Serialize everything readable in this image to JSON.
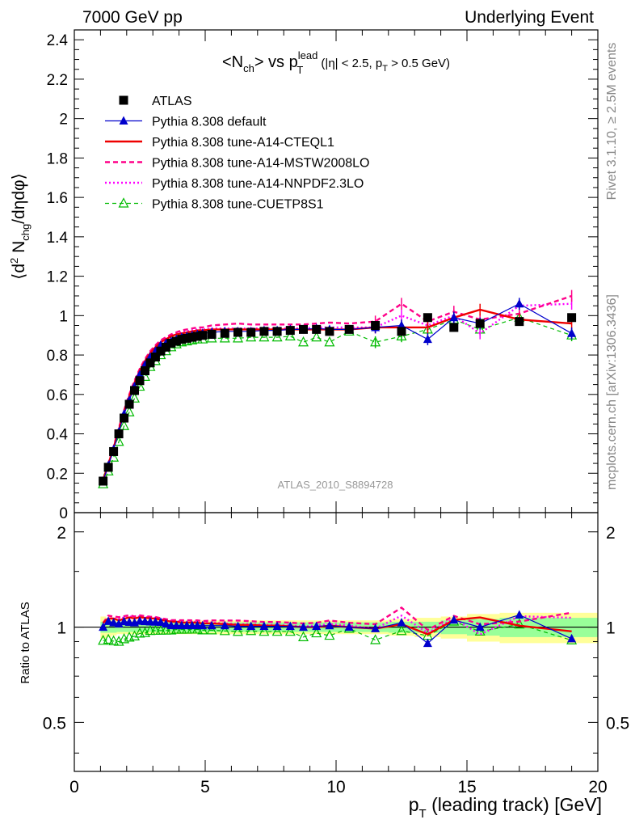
{
  "header": {
    "left": "7000 GeV pp",
    "right": "Underlying Event"
  },
  "side_labels": {
    "rivet": "Rivet 3.1.10, ≥ 2.5M events",
    "mcplots": "mcplots.cern.ch [arXiv:1306.3436]"
  },
  "analysis_label": "ATLAS_2010_S8894728",
  "title": {
    "main": "<N",
    "sub_ch": "ch",
    "vs": "> vs p",
    "sup_lead": "lead",
    "sub_T": "T",
    "cuts_a": " (|η| < 2.5, p",
    "cuts_sub": "T",
    "cuts_b": " > 0.5 GeV)"
  },
  "y_label_main": {
    "a": "⟨d",
    "sup": "2",
    "b": " N",
    "sub": "chg",
    "c": "/dηdφ⟩"
  },
  "y_label_ratio": "Ratio to ATLAS",
  "x_label": {
    "a": "p",
    "sub": "T",
    "b": " (leading track) [GeV]"
  },
  "colors": {
    "data": "#000000",
    "default": "#0000cc",
    "cteql1": "#ee0000",
    "mstw": "#ff0088",
    "nnpdf": "#ff00ff",
    "cuetp8s1": "#00bb00",
    "band_inner": "#99ff99",
    "band_outer": "#ffff99"
  },
  "chart_data": [
    {
      "type": "scatter",
      "title": "<Nch> vs pT lead (|η| < 2.5, pT > 0.5 GeV)",
      "xlabel": "pT (leading track) [GeV]",
      "ylabel": "⟨d2 Nchg/dηdφ⟩",
      "xlim": [
        0,
        20
      ],
      "ylim": [
        0,
        2.45
      ],
      "yticks": [
        0,
        0.2,
        0.4,
        0.6,
        0.8,
        1,
        1.2,
        1.4,
        1.6,
        1.8,
        2,
        2.2,
        2.4
      ],
      "yticklabels": [
        "0",
        "0.2",
        "0.4",
        "0.6",
        "0.8",
        "1",
        "1.2",
        "1.4",
        "1.6",
        "1.8",
        "2",
        "2.2",
        "2.4"
      ],
      "xticks": [
        0,
        5,
        10,
        15,
        20
      ],
      "xticklabels": [
        "0",
        "5",
        "10",
        "15",
        "20"
      ],
      "legend_position": "top-left",
      "x": [
        1.1,
        1.3,
        1.5,
        1.7,
        1.9,
        2.1,
        2.3,
        2.5,
        2.7,
        2.9,
        3.1,
        3.3,
        3.5,
        3.7,
        3.9,
        4.1,
        4.3,
        4.5,
        4.7,
        4.9,
        5.25,
        5.75,
        6.25,
        6.75,
        7.25,
        7.75,
        8.25,
        8.75,
        9.25,
        9.75,
        10.5,
        11.5,
        12.5,
        13.5,
        14.5,
        15.5,
        17.0,
        19.0
      ],
      "series": [
        {
          "name": "ATLAS",
          "style": "data",
          "values": [
            0.16,
            0.23,
            0.31,
            0.4,
            0.48,
            0.55,
            0.62,
            0.67,
            0.72,
            0.76,
            0.79,
            0.82,
            0.84,
            0.86,
            0.87,
            0.88,
            0.885,
            0.89,
            0.895,
            0.9,
            0.905,
            0.91,
            0.915,
            0.915,
            0.92,
            0.92,
            0.925,
            0.93,
            0.93,
            0.92,
            0.93,
            0.95,
            0.92,
            0.99,
            0.94,
            0.96,
            0.97,
            0.99
          ]
        },
        {
          "name": "Pythia 8.308 default",
          "style": "default",
          "values": [
            0.16,
            0.24,
            0.32,
            0.41,
            0.5,
            0.57,
            0.64,
            0.7,
            0.75,
            0.79,
            0.82,
            0.85,
            0.86,
            0.87,
            0.88,
            0.89,
            0.895,
            0.9,
            0.905,
            0.91,
            0.915,
            0.92,
            0.92,
            0.92,
            0.925,
            0.925,
            0.93,
            0.93,
            0.935,
            0.93,
            0.93,
            0.94,
            0.95,
            0.88,
            0.99,
            0.96,
            1.06,
            0.91
          ]
        },
        {
          "name": "Pythia 8.308 tune-A14-CTEQL1",
          "style": "cteql1",
          "values": [
            0.165,
            0.245,
            0.33,
            0.42,
            0.51,
            0.59,
            0.66,
            0.72,
            0.77,
            0.81,
            0.84,
            0.865,
            0.88,
            0.895,
            0.905,
            0.91,
            0.915,
            0.92,
            0.925,
            0.925,
            0.93,
            0.93,
            0.93,
            0.93,
            0.93,
            0.93,
            0.93,
            0.93,
            0.93,
            0.93,
            0.93,
            0.94,
            0.94,
            0.94,
            0.99,
            1.03,
            0.98,
            0.96
          ]
        },
        {
          "name": "Pythia 8.308 tune-A14-MSTW2008LO",
          "style": "mstw",
          "values": [
            0.165,
            0.25,
            0.335,
            0.43,
            0.52,
            0.6,
            0.67,
            0.73,
            0.78,
            0.82,
            0.85,
            0.875,
            0.89,
            0.905,
            0.915,
            0.925,
            0.93,
            0.935,
            0.94,
            0.94,
            0.95,
            0.955,
            0.96,
            0.955,
            0.955,
            0.955,
            0.955,
            0.955,
            0.96,
            0.965,
            0.96,
            0.97,
            1.06,
            0.97,
            1.02,
            0.98,
            1.01,
            1.1
          ]
        },
        {
          "name": "Pythia 8.308 tune-A14-NNPDF2.3LO",
          "style": "nnpdf",
          "values": [
            0.16,
            0.245,
            0.33,
            0.425,
            0.515,
            0.595,
            0.665,
            0.725,
            0.775,
            0.815,
            0.845,
            0.87,
            0.885,
            0.9,
            0.91,
            0.915,
            0.92,
            0.925,
            0.93,
            0.93,
            0.935,
            0.935,
            0.935,
            0.935,
            0.935,
            0.935,
            0.935,
            0.935,
            0.94,
            0.94,
            0.94,
            0.94,
            1.0,
            0.95,
            1.0,
            0.91,
            1.05,
            1.06
          ]
        },
        {
          "name": "Pythia 8.308 tune-CUETP8S1",
          "style": "cuetp8s1",
          "values": [
            0.145,
            0.21,
            0.28,
            0.36,
            0.44,
            0.51,
            0.58,
            0.64,
            0.69,
            0.74,
            0.77,
            0.8,
            0.82,
            0.84,
            0.855,
            0.865,
            0.87,
            0.875,
            0.88,
            0.88,
            0.885,
            0.885,
            0.885,
            0.89,
            0.89,
            0.89,
            0.895,
            0.865,
            0.89,
            0.865,
            0.92,
            0.865,
            0.895,
            0.93,
            0.98,
            0.93,
            0.99,
            0.9
          ]
        }
      ]
    },
    {
      "type": "scatter",
      "title": "",
      "xlabel": "pT (leading track) [GeV]",
      "ylabel": "Ratio to ATLAS",
      "xlim": [
        0,
        20
      ],
      "ylim": [
        0.35,
        2.3
      ],
      "yticks": [
        0.5,
        1,
        2
      ],
      "yticklabels": [
        "0.5",
        "1",
        "2"
      ],
      "band_inner_rel": [
        0.04,
        0.04,
        0.04,
        0.035,
        0.035,
        0.035,
        0.035,
        0.035,
        0.035,
        0.035,
        0.035,
        0.035,
        0.035,
        0.035,
        0.035,
        0.035,
        0.035,
        0.035,
        0.035,
        0.035,
        0.035,
        0.035,
        0.035,
        0.035,
        0.035,
        0.035,
        0.035,
        0.035,
        0.035,
        0.035,
        0.035,
        0.035,
        0.04,
        0.04,
        0.05,
        0.06,
        0.07,
        0.07
      ],
      "band_outer_rel": [
        0.08,
        0.07,
        0.06,
        0.05,
        0.05,
        0.05,
        0.05,
        0.05,
        0.05,
        0.05,
        0.05,
        0.05,
        0.05,
        0.05,
        0.05,
        0.05,
        0.05,
        0.05,
        0.05,
        0.05,
        0.05,
        0.05,
        0.05,
        0.05,
        0.05,
        0.05,
        0.05,
        0.05,
        0.05,
        0.05,
        0.05,
        0.05,
        0.06,
        0.07,
        0.08,
        0.1,
        0.11,
        0.11
      ]
    }
  ]
}
